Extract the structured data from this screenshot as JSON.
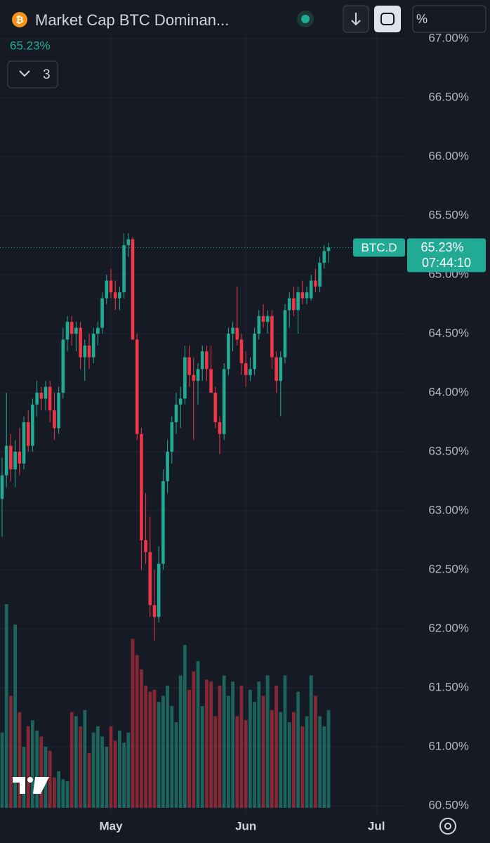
{
  "toolbar": {
    "title": "Market Cap BTC Dominan...",
    "indicators_count": "3",
    "scale_label": "%"
  },
  "chart_data": {
    "type": "candlestick",
    "symbol": "BTC.D",
    "last_value": 65.23,
    "last_value_label": "65.23%",
    "countdown": "07:44:10",
    "up_color": "#22ab94",
    "down_color": "#f23645",
    "grid": true,
    "ylim": [
      60.5,
      67.0
    ],
    "yticks": [
      {
        "value": 60.5,
        "label": "60.50%"
      },
      {
        "value": 61.0,
        "label": "61.00%"
      },
      {
        "value": 61.5,
        "label": "61.50%"
      },
      {
        "value": 62.0,
        "label": "62.00%"
      },
      {
        "value": 62.5,
        "label": "62.50%"
      },
      {
        "value": 63.0,
        "label": "63.00%"
      },
      {
        "value": 63.5,
        "label": "63.50%"
      },
      {
        "value": 64.0,
        "label": "64.00%"
      },
      {
        "value": 64.5,
        "label": "64.50%"
      },
      {
        "value": 65.0,
        "label": "65.00%"
      },
      {
        "value": 65.5,
        "label": "65.50%"
      },
      {
        "value": 66.0,
        "label": "66.00%"
      },
      {
        "value": 66.5,
        "label": "66.50%"
      },
      {
        "value": 67.0,
        "label": "67.00%"
      }
    ],
    "categories": [
      null,
      null,
      null,
      null,
      null,
      null,
      null,
      null,
      null,
      null,
      null,
      null,
      null,
      null,
      null,
      null,
      null,
      null,
      null,
      null,
      null,
      null,
      null,
      null,
      null,
      "May",
      null,
      null,
      null,
      null,
      null,
      null,
      null,
      null,
      null,
      null,
      null,
      null,
      null,
      null,
      null,
      null,
      null,
      null,
      null,
      null,
      null,
      null,
      null,
      null,
      null,
      null,
      null,
      null,
      null,
      null,
      "Jun",
      null,
      null,
      null,
      null,
      null,
      null,
      null,
      null,
      null,
      null,
      null,
      null,
      null,
      null,
      null,
      null,
      null,
      null,
      null,
      null,
      null,
      null,
      null,
      null,
      null,
      null,
      null,
      null,
      null,
      "Jul"
    ],
    "open": [
      63.1,
      63.3,
      63.55,
      63.35,
      63.5,
      63.4,
      63.75,
      63.55,
      63.9,
      64.0,
      63.95,
      64.05,
      63.85,
      63.7,
      64.0,
      64.45,
      64.6,
      64.5,
      64.55,
      64.3,
      64.4,
      64.3,
      64.5,
      64.55,
      64.8,
      64.95,
      64.85,
      64.8,
      64.85,
      65.25,
      65.3,
      64.45,
      63.65,
      62.75,
      62.65,
      62.2,
      62.1,
      62.55,
      63.25,
      63.5,
      63.75,
      63.9,
      63.95,
      64.3,
      64.15,
      64.1,
      64.2,
      64.35,
      64.2,
      64.0,
      63.75,
      63.65,
      64.2,
      64.5,
      64.55,
      64.45,
      64.25,
      64.15,
      64.2,
      64.5,
      64.65,
      64.6,
      64.65,
      64.3,
      64.1,
      64.3,
      64.7,
      64.8,
      64.7,
      64.85,
      64.8,
      64.8,
      64.95,
      64.9,
      65.1,
      65.2,
      null,
      null,
      null,
      null,
      null,
      null,
      null,
      null,
      null,
      null,
      null
    ],
    "high": [
      63.45,
      64.0,
      63.65,
      63.6,
      63.7,
      63.8,
      63.85,
      63.95,
      64.1,
      64.05,
      64.1,
      64.1,
      64.0,
      64.05,
      64.55,
      64.65,
      64.65,
      64.6,
      64.6,
      64.45,
      64.5,
      64.55,
      64.6,
      64.85,
      65.0,
      65.05,
      64.95,
      64.9,
      65.35,
      65.35,
      65.32,
      64.5,
      63.7,
      63.15,
      62.95,
      62.5,
      62.7,
      63.35,
      63.6,
      63.8,
      64.0,
      64.05,
      64.4,
      64.4,
      64.3,
      64.25,
      64.4,
      64.4,
      64.4,
      64.05,
      63.8,
      64.25,
      64.55,
      64.6,
      64.9,
      64.5,
      64.35,
      64.3,
      64.55,
      64.7,
      64.75,
      64.7,
      64.7,
      64.35,
      64.35,
      64.75,
      64.85,
      64.9,
      64.9,
      64.95,
      64.9,
      65.0,
      65.05,
      65.15,
      65.25,
      65.27,
      null,
      null,
      null,
      null,
      null,
      null,
      null,
      null,
      null,
      null,
      null
    ],
    "low": [
      62.78,
      63.2,
      63.25,
      63.2,
      63.3,
      63.35,
      63.5,
      63.5,
      63.8,
      63.85,
      63.85,
      63.75,
      63.6,
      63.65,
      63.95,
      64.35,
      64.4,
      64.35,
      64.2,
      64.1,
      64.2,
      64.25,
      64.4,
      64.5,
      64.75,
      64.8,
      64.7,
      64.7,
      64.8,
      65.15,
      64.45,
      63.6,
      62.5,
      62.55,
      62.1,
      61.9,
      62.05,
      62.5,
      63.15,
      63.4,
      63.65,
      63.7,
      63.9,
      64.05,
      63.6,
      63.9,
      64.1,
      64.1,
      64.0,
      63.7,
      63.48,
      63.6,
      64.15,
      64.35,
      64.4,
      64.15,
      64.05,
      64.1,
      64.15,
      64.45,
      64.55,
      64.5,
      64.2,
      64.0,
      63.8,
      64.25,
      64.55,
      64.65,
      64.5,
      64.75,
      64.75,
      64.78,
      64.85,
      64.85,
      65.05,
      65.1,
      null,
      null,
      null,
      null,
      null,
      null,
      null,
      null,
      null,
      null,
      null
    ],
    "close": [
      63.3,
      63.55,
      63.35,
      63.5,
      63.4,
      63.75,
      63.55,
      63.9,
      64.0,
      63.95,
      64.05,
      63.85,
      63.7,
      64.0,
      64.45,
      64.6,
      64.5,
      64.55,
      64.3,
      64.4,
      64.3,
      64.5,
      64.55,
      64.8,
      64.95,
      64.85,
      64.8,
      64.85,
      65.25,
      65.3,
      64.45,
      63.65,
      62.75,
      62.65,
      62.2,
      62.1,
      62.55,
      63.25,
      63.5,
      63.75,
      63.9,
      63.95,
      64.3,
      64.15,
      64.1,
      64.2,
      64.35,
      64.2,
      64.0,
      63.75,
      63.65,
      64.2,
      64.5,
      64.55,
      64.45,
      64.25,
      64.15,
      64.2,
      64.5,
      64.65,
      64.6,
      64.65,
      64.3,
      64.1,
      64.3,
      64.7,
      64.8,
      64.7,
      64.85,
      64.8,
      64.85,
      64.95,
      64.9,
      65.1,
      65.2,
      65.23,
      null,
      null,
      null,
      null,
      null,
      null,
      null,
      null,
      null,
      null,
      null
    ],
    "volume": [
      37,
      100,
      55,
      90,
      47,
      30,
      40,
      43,
      38,
      35,
      30,
      28,
      15,
      18,
      14,
      13,
      47,
      45,
      40,
      48,
      27,
      37,
      40,
      35,
      30,
      40,
      33,
      38,
      32,
      37,
      83,
      75,
      68,
      60,
      57,
      58,
      52,
      55,
      60,
      50,
      42,
      65,
      80,
      58,
      67,
      72,
      50,
      63,
      62,
      45,
      60,
      65,
      55,
      62,
      45,
      60,
      43,
      58,
      52,
      62,
      55,
      65,
      48,
      60,
      47,
      65,
      42,
      47,
      57,
      40,
      45,
      65,
      55,
      45,
      40,
      48,
      null,
      null,
      null,
      null,
      null,
      null,
      null,
      null,
      null,
      null,
      null
    ]
  }
}
